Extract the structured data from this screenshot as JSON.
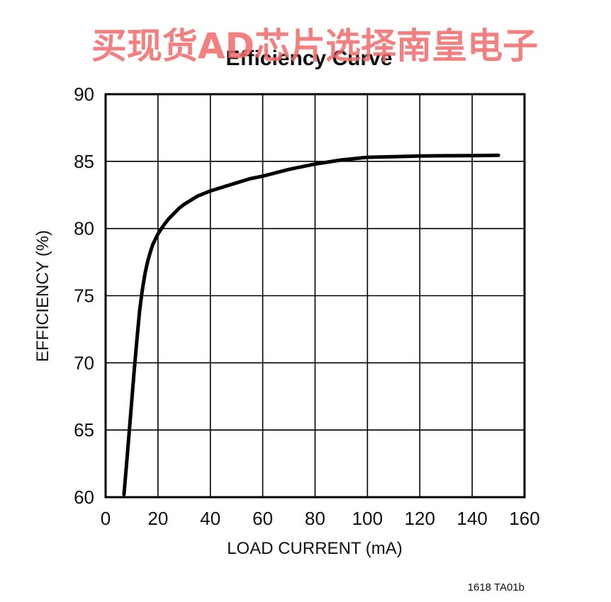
{
  "watermark": "买现货AD芯片选择南皇电子",
  "figure_id": "1618 TA01b",
  "chart_data": {
    "type": "line",
    "title": "Efficiency Curve",
    "xlabel": "LOAD CURRENT (mA)",
    "ylabel": "EFFICIENCY (%)",
    "xlim": [
      0,
      160
    ],
    "ylim": [
      60,
      90
    ],
    "xticks": [
      0,
      20,
      40,
      60,
      80,
      100,
      120,
      140,
      160
    ],
    "yticks": [
      60,
      65,
      70,
      75,
      80,
      85,
      90
    ],
    "grid": true,
    "series": [
      {
        "x": [
          7,
          8,
          9,
          10,
          11,
          12,
          13,
          14,
          15,
          16,
          17,
          18,
          19,
          20,
          22,
          24,
          26,
          28,
          30,
          35,
          40,
          45,
          50,
          55,
          60,
          70,
          80,
          90,
          100,
          110,
          120,
          130,
          140,
          150
        ],
        "y": [
          60.2,
          62.5,
          64.8,
          67.2,
          69.6,
          71.8,
          73.9,
          75.4,
          76.6,
          77.5,
          78.2,
          78.8,
          79.2,
          79.6,
          80.2,
          80.7,
          81.1,
          81.5,
          81.8,
          82.4,
          82.8,
          83.1,
          83.4,
          83.7,
          83.9,
          84.4,
          84.8,
          85.1,
          85.3,
          85.35,
          85.4,
          85.42,
          85.43,
          85.45
        ]
      }
    ]
  }
}
